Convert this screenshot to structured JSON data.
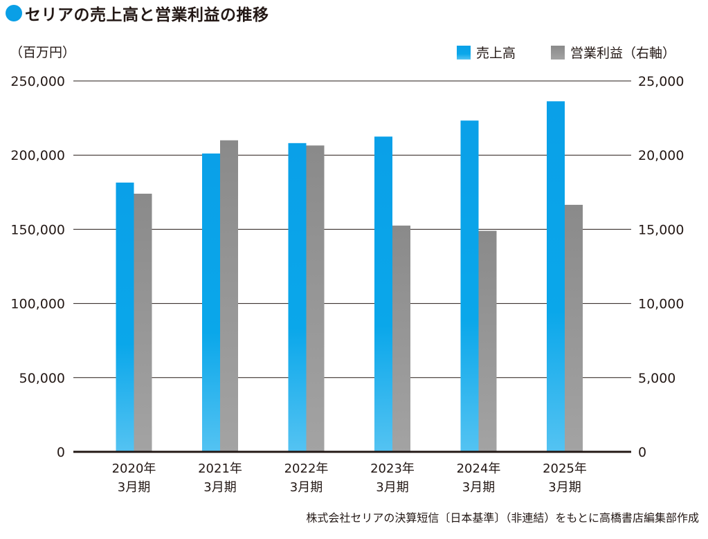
{
  "title": "セリアの売上高と営業利益の推移",
  "colors": {
    "accent": "#0a9fe6",
    "sales_top": "#0aa0e8",
    "sales_bottom": "#54c3f2",
    "profit_top": "#8a8a8a",
    "profit_bottom": "#a3a3a3"
  },
  "chart_data": {
    "type": "bar",
    "title": "セリアの売上高と営業利益の推移",
    "unit_label": "（百万円）",
    "categories": [
      {
        "line1": "2020年",
        "line2": "3月期"
      },
      {
        "line1": "2021年",
        "line2": "3月期"
      },
      {
        "line1": "2022年",
        "line2": "3月期"
      },
      {
        "line1": "2023年",
        "line2": "3月期"
      },
      {
        "line1": "2024年",
        "line2": "3月期"
      },
      {
        "line1": "2025年",
        "line2": "3月期"
      }
    ],
    "series": [
      {
        "name": "売上高",
        "axis": "left",
        "values": [
          181500,
          201100,
          208100,
          212500,
          223300,
          236300
        ]
      },
      {
        "name": "営業利益（右軸）",
        "axis": "right",
        "values": [
          17400,
          21000,
          20650,
          15250,
          14900,
          16650
        ]
      }
    ],
    "y_left": {
      "ylim": [
        0,
        250000
      ],
      "ticks": [
        "250,000",
        "200,000",
        "150,000",
        "100,000",
        "50,000",
        "0"
      ]
    },
    "y_right": {
      "ylim": [
        0,
        25000
      ],
      "ticks": [
        "25,000",
        "20,000",
        "15,000",
        "10,000",
        "5,000",
        "0"
      ]
    },
    "grid": true,
    "legend_position": "top-right"
  },
  "source": "株式会社セリアの決算短信〔日本基準〕（非連結）をもとに高橋書店編集部作成"
}
